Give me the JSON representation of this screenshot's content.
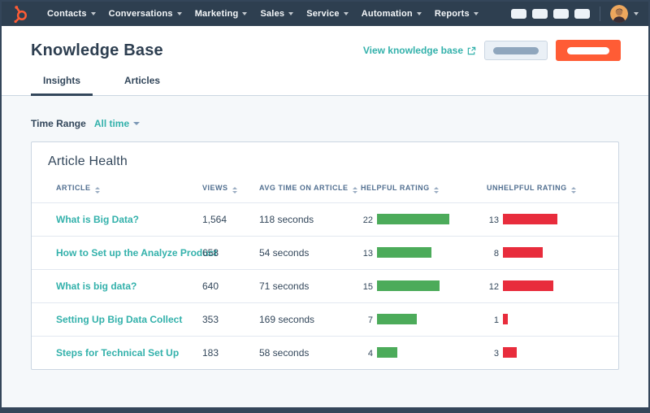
{
  "nav": {
    "items": [
      "Contacts",
      "Conversations",
      "Marketing",
      "Sales",
      "Service",
      "Automation",
      "Reports"
    ]
  },
  "header": {
    "title": "Knowledge Base",
    "view_link": "View knowledge base",
    "tabs": [
      {
        "label": "Insights",
        "active": true
      },
      {
        "label": "Articles",
        "active": false
      }
    ]
  },
  "filters": {
    "time_range_label": "Time Range",
    "time_range_value": "All time"
  },
  "card": {
    "title": "Article Health",
    "columns": [
      "ARTICLE",
      "VIEWS",
      "AVG TIME ON ARTICLE",
      "HELPFUL RATING",
      "UNHELPFUL RATING"
    ],
    "rows": [
      {
        "article": "What is Big Data?",
        "views": "1,564",
        "avg_time": "118 seconds",
        "helpful": "22",
        "helpful_bar": 89,
        "unhelpful": "13",
        "unhelpful_bar": 67
      },
      {
        "article": "How to Set up the Analyze Product",
        "views": "658",
        "avg_time": "54 seconds",
        "helpful": "13",
        "helpful_bar": 67,
        "unhelpful": "8",
        "unhelpful_bar": 49
      },
      {
        "article": "What is big data?",
        "views": "640",
        "avg_time": "71 seconds",
        "helpful": "15",
        "helpful_bar": 77,
        "unhelpful": "12",
        "unhelpful_bar": 62
      },
      {
        "article": "Setting Up Big Data Collect",
        "views": "353",
        "avg_time": "169 seconds",
        "helpful": "7",
        "helpful_bar": 49,
        "unhelpful": "1",
        "unhelpful_bar": 6
      },
      {
        "article": "Steps for Technical Set Up",
        "views": "183",
        "avg_time": "58 seconds",
        "helpful": "4",
        "helpful_bar": 25,
        "unhelpful": "3",
        "unhelpful_bar": 17
      }
    ]
  },
  "icons": {
    "logo": "hubspot-sprocket",
    "external_link": "box-with-arrow",
    "sort": "up-down-arrows",
    "chevron": "chevron-down"
  },
  "colors": {
    "nav": "#2e3f50",
    "frame": "#34465a",
    "bg": "#f5f8fa",
    "title": "#2d3e50",
    "teal": "#33b1ab",
    "orange": "#ff5c35",
    "green": "#4cab5a",
    "red": "#e82c3c"
  }
}
